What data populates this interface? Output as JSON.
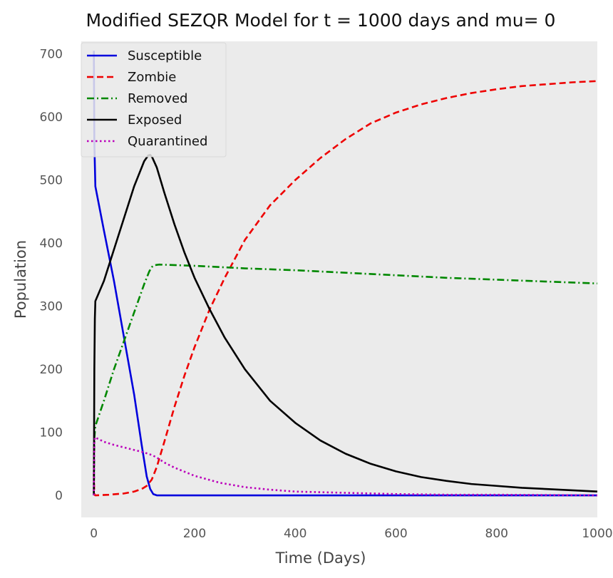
{
  "chart_data": {
    "type": "line",
    "title": "Modified SEZQR Model for t = 1000 days and mu= 0",
    "xlabel": "Time (Days)",
    "ylabel": "Population",
    "xlim": [
      -25,
      1000
    ],
    "ylim": [
      -35,
      720
    ],
    "xticks": [
      0,
      200,
      400,
      600,
      800,
      1000
    ],
    "yticks": [
      0,
      100,
      200,
      300,
      400,
      500,
      600,
      700
    ],
    "grid": false,
    "background": "#ebebeb",
    "legend_position": "top-left",
    "series": [
      {
        "name": "Susceptible",
        "color": "#0000dd",
        "style": "solid",
        "x": [
          0,
          1,
          3,
          20,
          40,
          60,
          80,
          95,
          105,
          112,
          118,
          125,
          135,
          200,
          400,
          600,
          800,
          1000
        ],
        "y": [
          705,
          560,
          490,
          420,
          340,
          250,
          160,
          80,
          30,
          10,
          2,
          0,
          0,
          0,
          0,
          0,
          0,
          0
        ]
      },
      {
        "name": "Zombie",
        "color": "#ee0000",
        "style": "dashed",
        "x": [
          0,
          0.5,
          1,
          3,
          30,
          60,
          80,
          95,
          105,
          115,
          125,
          140,
          160,
          180,
          200,
          230,
          260,
          300,
          350,
          400,
          450,
          500,
          550,
          600,
          650,
          700,
          750,
          800,
          850,
          900,
          950,
          1000
        ],
        "y": [
          35,
          15,
          1,
          0,
          1,
          3,
          6,
          10,
          15,
          25,
          45,
          85,
          140,
          190,
          235,
          295,
          345,
          405,
          460,
          500,
          535,
          565,
          590,
          607,
          620,
          630,
          638,
          644,
          649,
          652,
          655,
          657
        ]
      },
      {
        "name": "Removed",
        "color": "#008800",
        "style": "dashdot",
        "x": [
          0,
          0.5,
          1,
          3,
          20,
          40,
          60,
          80,
          100,
          110,
          115,
          120,
          130,
          200,
          300,
          400,
          500,
          600,
          700,
          800,
          900,
          1000
        ],
        "y": [
          0,
          50,
          90,
          110,
          150,
          200,
          245,
          290,
          335,
          355,
          362,
          365,
          366,
          364,
          360,
          357,
          353,
          349,
          345,
          342,
          339,
          336
        ]
      },
      {
        "name": "Exposed",
        "color": "#000000",
        "style": "solid",
        "x": [
          0,
          0.5,
          1,
          2,
          3,
          20,
          40,
          60,
          80,
          100,
          108,
          112,
          116,
          125,
          140,
          160,
          180,
          200,
          230,
          260,
          300,
          350,
          400,
          450,
          500,
          550,
          600,
          650,
          700,
          750,
          800,
          850,
          900,
          950,
          1000
        ],
        "y": [
          0,
          100,
          200,
          280,
          308,
          340,
          390,
          440,
          490,
          530,
          539,
          540,
          536,
          520,
          480,
          430,
          385,
          345,
          295,
          250,
          200,
          150,
          115,
          87,
          66,
          50,
          38,
          29,
          23,
          18,
          15,
          12,
          10,
          8,
          6
        ]
      },
      {
        "name": "Quarantined",
        "color": "#bb00bb",
        "style": "dotted",
        "x": [
          0,
          0.5,
          1,
          2,
          20,
          40,
          60,
          80,
          100,
          115,
          125,
          140,
          160,
          200,
          250,
          300,
          350,
          400,
          500,
          600,
          700,
          800,
          1000
        ],
        "y": [
          0,
          50,
          85,
          92,
          85,
          80,
          76,
          72,
          68,
          64,
          60,
          52,
          44,
          31,
          20,
          13,
          9,
          6,
          4,
          2,
          1,
          1,
          0
        ]
      }
    ]
  }
}
